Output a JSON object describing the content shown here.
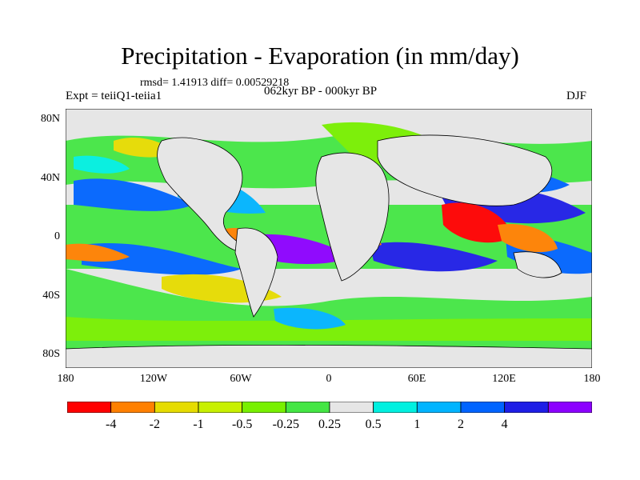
{
  "header": {
    "title": "Precipitation - Evaporation (in mm/day)",
    "stats": "rmsd= 1.41913  diff= 0.00529218",
    "expt": "Expt = teiiQ1-teiia1",
    "period": "062kyr BP - 000kyr BP",
    "season": "DJF"
  },
  "axes": {
    "lat_labels": [
      "80N",
      "40N",
      "0",
      "40S",
      "80S"
    ],
    "lon_labels": [
      "180",
      "120W",
      "60W",
      "0",
      "60E",
      "120E",
      "180"
    ]
  },
  "colorbar": {
    "labels": [
      "-4",
      "-2",
      "-1",
      "-0.5",
      "-0.25",
      "0.25",
      "0.5",
      "1",
      "2",
      "4"
    ],
    "colors": [
      "#ff0000",
      "#ff8000",
      "#e6dc00",
      "#c8f000",
      "#78f000",
      "#44e644",
      "#e6e6e6",
      "#00f0e0",
      "#00b4ff",
      "#0064ff",
      "#1e1ee6",
      "#8c00ff"
    ]
  }
}
